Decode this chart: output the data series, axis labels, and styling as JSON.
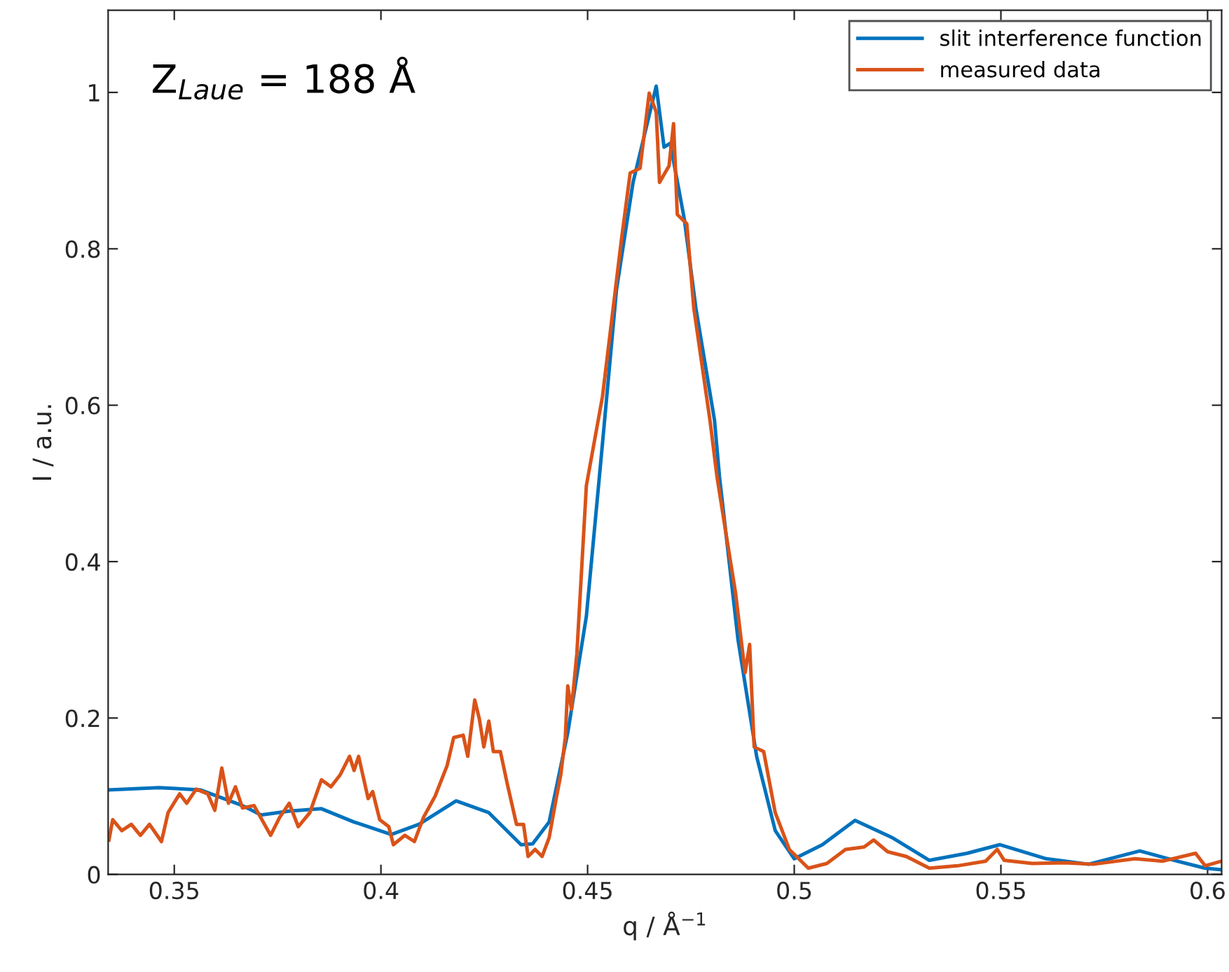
{
  "chart_data": {
    "type": "line",
    "xlabel": "q / Å$^{−1}$",
    "ylabel": "I / a.u.",
    "annotations": [
      "Z$_{Laue}$ = 188 Å"
    ],
    "xlim": [
      0.334,
      0.6034
    ],
    "ylim": [
      0,
      1.105
    ],
    "xticks": [
      0.35,
      0.4,
      0.45,
      0.5,
      0.55,
      0.6
    ],
    "yticks": [
      0,
      0.2,
      0.4,
      0.6,
      0.8,
      1
    ],
    "legend": "top right",
    "grid": false,
    "line_style": "solid",
    "marker": "none",
    "series": [
      {
        "name": "slit interference function",
        "color": "#0072bd",
        "x": [
          0.334,
          0.3463,
          0.3564,
          0.3665,
          0.371,
          0.3778,
          0.3856,
          0.3935,
          0.4025,
          0.4092,
          0.4182,
          0.4261,
          0.4339,
          0.4367,
          0.4407,
          0.4452,
          0.4497,
          0.4536,
          0.457,
          0.461,
          0.4666,
          0.4685,
          0.47,
          0.4734,
          0.4762,
          0.4807,
          0.4819,
          0.4864,
          0.4909,
          0.4954,
          0.5,
          0.5068,
          0.5147,
          0.5237,
          0.5327,
          0.5418,
          0.5497,
          0.561,
          0.5712,
          0.5836,
          0.5926,
          0.5994,
          0.6034
        ],
        "values": [
          0.108,
          0.111,
          0.108,
          0.088,
          0.076,
          0.081,
          0.084,
          0.067,
          0.051,
          0.064,
          0.094,
          0.079,
          0.038,
          0.039,
          0.067,
          0.181,
          0.33,
          0.551,
          0.748,
          0.885,
          1.008,
          0.93,
          0.935,
          0.838,
          0.724,
          0.581,
          0.509,
          0.3,
          0.151,
          0.056,
          0.02,
          0.038,
          0.069,
          0.047,
          0.018,
          0.027,
          0.038,
          0.02,
          0.013,
          0.03,
          0.017,
          0.008,
          0.006
        ]
      },
      {
        "name": "measured data",
        "color": "#d95319",
        "x": [
          0.3342,
          0.3351,
          0.3373,
          0.3396,
          0.3418,
          0.344,
          0.3469,
          0.3485,
          0.3513,
          0.353,
          0.3553,
          0.3581,
          0.3598,
          0.3615,
          0.3631,
          0.3648,
          0.3665,
          0.3693,
          0.3733,
          0.3755,
          0.3778,
          0.38,
          0.3828,
          0.3856,
          0.3879,
          0.3901,
          0.3924,
          0.3935,
          0.3946,
          0.3969,
          0.398,
          0.3997,
          0.4019,
          0.403,
          0.4058,
          0.4081,
          0.4103,
          0.4131,
          0.416,
          0.4176,
          0.4199,
          0.421,
          0.4227,
          0.4238,
          0.4249,
          0.4261,
          0.4272,
          0.4289,
          0.4306,
          0.4328,
          0.4345,
          0.4356,
          0.4373,
          0.439,
          0.4407,
          0.4424,
          0.4435,
          0.4446,
          0.4452,
          0.4461,
          0.4474,
          0.4497,
          0.4536,
          0.4581,
          0.4603,
          0.4627,
          0.4649,
          0.4666,
          0.4674,
          0.4697,
          0.4708,
          0.4717,
          0.474,
          0.4757,
          0.4796,
          0.4813,
          0.4836,
          0.4858,
          0.4881,
          0.4892,
          0.4903,
          0.4926,
          0.4954,
          0.4988,
          0.5034,
          0.5079,
          0.5124,
          0.5169,
          0.5192,
          0.5226,
          0.5271,
          0.5327,
          0.5395,
          0.5463,
          0.5491,
          0.5508,
          0.5576,
          0.5655,
          0.5723,
          0.5824,
          0.5892,
          0.5971,
          0.5994,
          0.6034
        ],
        "values": [
          0.044,
          0.07,
          0.056,
          0.064,
          0.05,
          0.064,
          0.042,
          0.079,
          0.103,
          0.091,
          0.109,
          0.103,
          0.082,
          0.136,
          0.091,
          0.112,
          0.085,
          0.088,
          0.05,
          0.073,
          0.091,
          0.061,
          0.079,
          0.121,
          0.112,
          0.127,
          0.151,
          0.133,
          0.151,
          0.097,
          0.106,
          0.07,
          0.061,
          0.038,
          0.05,
          0.042,
          0.073,
          0.1,
          0.139,
          0.175,
          0.178,
          0.151,
          0.223,
          0.199,
          0.163,
          0.196,
          0.157,
          0.157,
          0.115,
          0.064,
          0.064,
          0.023,
          0.032,
          0.023,
          0.047,
          0.097,
          0.127,
          0.175,
          0.241,
          0.211,
          0.282,
          0.497,
          0.611,
          0.808,
          0.897,
          0.903,
          0.999,
          0.975,
          0.885,
          0.906,
          0.96,
          0.844,
          0.832,
          0.724,
          0.581,
          0.509,
          0.432,
          0.36,
          0.258,
          0.294,
          0.163,
          0.157,
          0.079,
          0.032,
          0.008,
          0.014,
          0.032,
          0.035,
          0.044,
          0.029,
          0.023,
          0.008,
          0.011,
          0.017,
          0.032,
          0.018,
          0.014,
          0.015,
          0.013,
          0.02,
          0.017,
          0.027,
          0.011,
          0.017
        ]
      }
    ]
  }
}
